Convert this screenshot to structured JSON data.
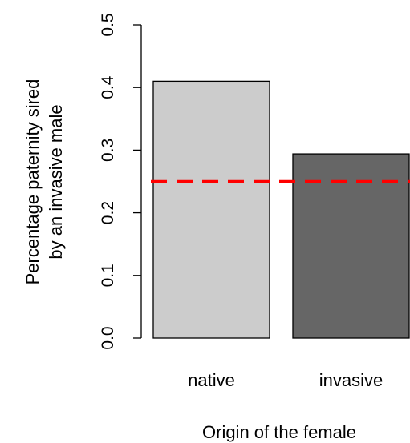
{
  "chart_data": {
    "type": "bar",
    "title": "",
    "xlabel": "Origin of the female",
    "ylabel_lines": [
      "Percentage paternity sired",
      "by an invasive male"
    ],
    "categories": [
      "native",
      "invasive"
    ],
    "values": [
      0.41,
      0.294
    ],
    "bar_colors": [
      "#cccccc",
      "#666666"
    ],
    "ylim": [
      0,
      0.5
    ],
    "yticks": [
      0.0,
      0.1,
      0.2,
      0.3,
      0.4,
      0.5
    ],
    "ytick_labels": [
      "0.0",
      "0.1",
      "0.2",
      "0.3",
      "0.4",
      "0.5"
    ],
    "reference_line": {
      "value": 0.25,
      "color": "#ff0000",
      "style": "dashed"
    },
    "grid": false,
    "legend": "none"
  }
}
